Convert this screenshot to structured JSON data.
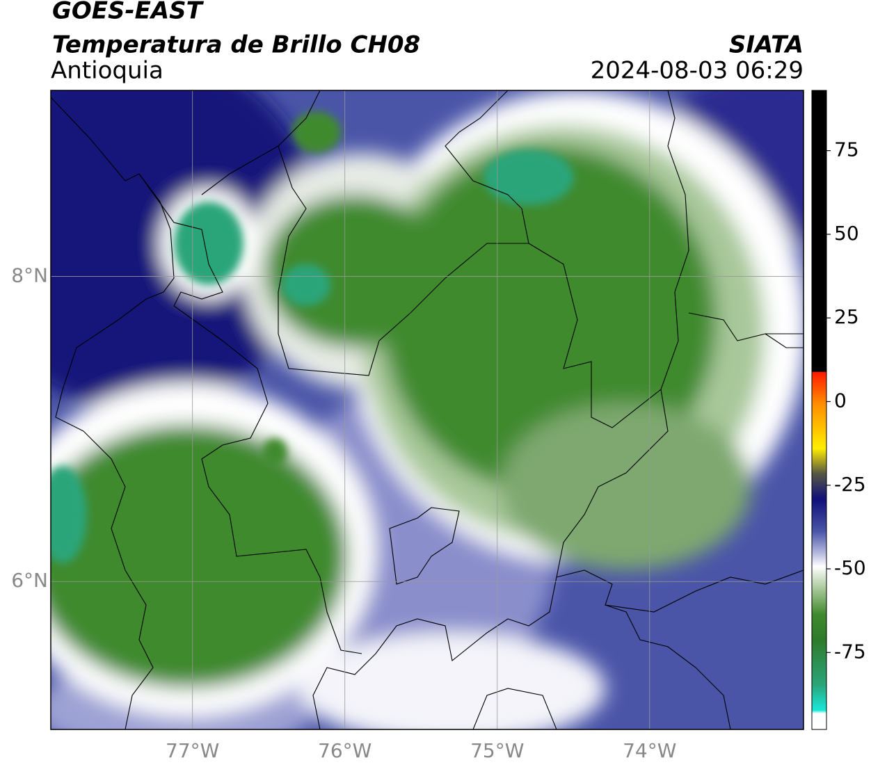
{
  "header": {
    "title": "GOES-EAST",
    "subtitle": "Temperatura de Brillo CH08",
    "region": "Antioquia",
    "source": "SIATA",
    "timestamp": "2024-08-03 06:29"
  },
  "map": {
    "lonlim": [
      -77.93,
      -72.99
    ],
    "latlim": [
      5.03,
      9.22
    ],
    "lon_ticks": [
      {
        "value": -77,
        "label": "77°W"
      },
      {
        "value": -76,
        "label": "76°W"
      },
      {
        "value": -75,
        "label": "75°W"
      },
      {
        "value": -74,
        "label": "74°W"
      }
    ],
    "lat_ticks": [
      {
        "value": 8,
        "label": "8°N"
      },
      {
        "value": 6,
        "label": "6°N"
      }
    ],
    "grid": true
  },
  "colorbar": {
    "lim": [
      -98,
      93
    ],
    "ticks": [
      75,
      50,
      25,
      0,
      -25,
      -50,
      -75
    ]
  }
}
